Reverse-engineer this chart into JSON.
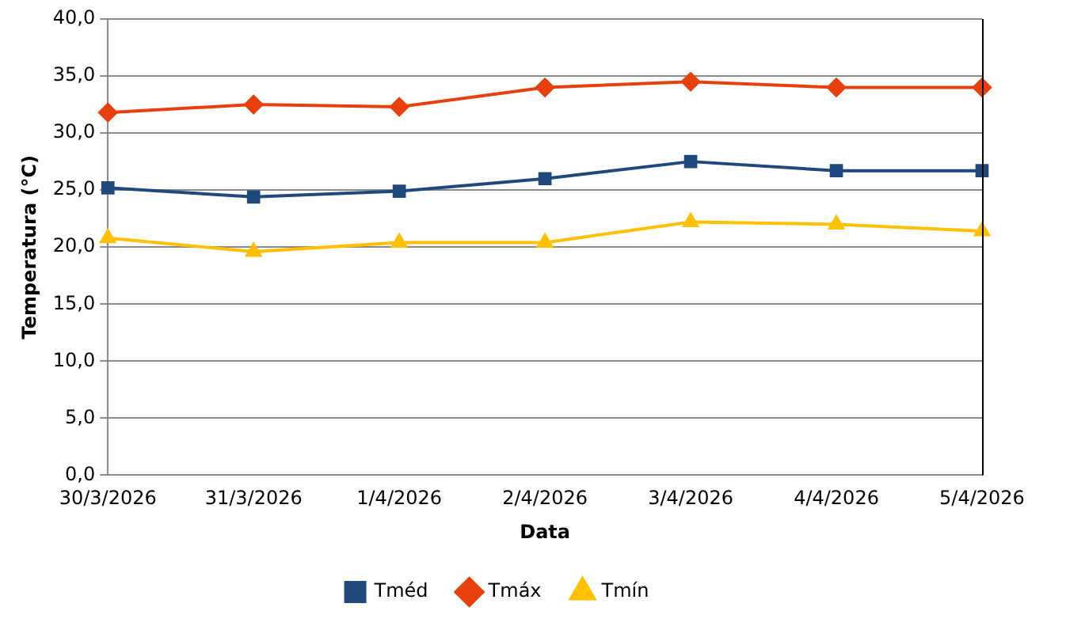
{
  "chart_data": {
    "type": "line",
    "xlabel": "Data",
    "ylabel": "Temperatura (°C)",
    "categories": [
      "30/3/2026",
      "31/3/2026",
      "1/4/2026",
      "2/4/2026",
      "3/4/2026",
      "4/4/2026",
      "5/4/2026"
    ],
    "series": [
      {
        "name": "Tméd",
        "color": "#1f497d",
        "marker": "square",
        "values": [
          25.2,
          24.4,
          24.9,
          26.0,
          27.5,
          26.7,
          26.7
        ]
      },
      {
        "name": "Tmáx",
        "color": "#e8400c",
        "marker": "diamond",
        "values": [
          31.8,
          32.5,
          32.3,
          34.0,
          34.5,
          34.0,
          34.0
        ]
      },
      {
        "name": "Tmín",
        "color": "#ffc000",
        "marker": "triangle",
        "values": [
          20.8,
          19.6,
          20.4,
          20.4,
          22.2,
          22.0,
          21.4
        ]
      }
    ],
    "ylim": [
      0,
      40
    ],
    "yticks": [
      {
        "value": 0,
        "label": "0,0"
      },
      {
        "value": 5,
        "label": "5,0"
      },
      {
        "value": 10,
        "label": "10,0"
      },
      {
        "value": 15,
        "label": "15,0"
      },
      {
        "value": 20,
        "label": "20,0"
      },
      {
        "value": 25,
        "label": "25,0"
      },
      {
        "value": 30,
        "label": "30,0"
      },
      {
        "value": 35,
        "label": "35,0"
      },
      {
        "value": 40,
        "label": "40,0"
      }
    ],
    "grid": "y",
    "legend": "bottom",
    "line_style": "solid"
  }
}
